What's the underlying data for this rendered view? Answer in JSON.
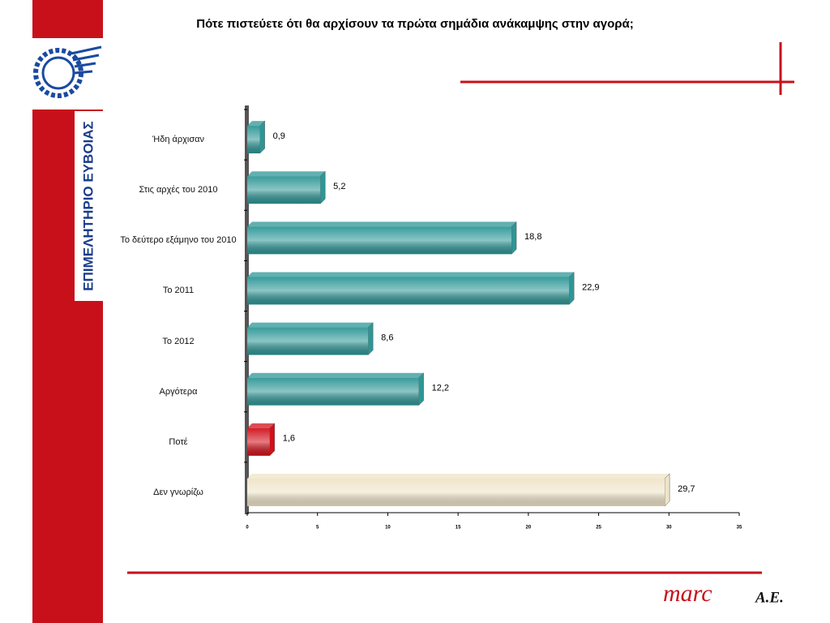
{
  "chart_data": {
    "type": "bar",
    "orientation": "horizontal",
    "title": "Πότε πιστεύετε ότι θα αρχίσουν τα πρώτα σημάδια ανάκαμψης στην αγορά;",
    "categories": [
      "Ήδη άρχισαν",
      "Στις αρχές του 2010",
      "Το δεύτερο εξάμηνο του 2010",
      "Το 2011",
      "Το 2012",
      "Αργότερα",
      "Ποτέ",
      "Δεν γνωρίζω"
    ],
    "values": [
      0.9,
      5.2,
      18.8,
      22.9,
      8.6,
      12.2,
      1.6,
      29.7
    ],
    "value_labels": [
      "0,9",
      "5,2",
      "18,8",
      "22,9",
      "8,6",
      "12,2",
      "1,6",
      "29,7"
    ],
    "colors": [
      "#2e9696",
      "#2e9696",
      "#2e9696",
      "#2e9696",
      "#2e9696",
      "#2e9696",
      "#d0101a",
      "#efe4c8"
    ],
    "xlim": [
      0,
      35
    ],
    "xticks": [
      0,
      5,
      10,
      15,
      20,
      25,
      30,
      35
    ]
  },
  "side_label": "ΕΠΙΜΕΛΗΤΗΡΙΟ ΕΥΒΟΙΑΣ",
  "brand": {
    "name": "marc",
    "suffix": "A.E."
  }
}
